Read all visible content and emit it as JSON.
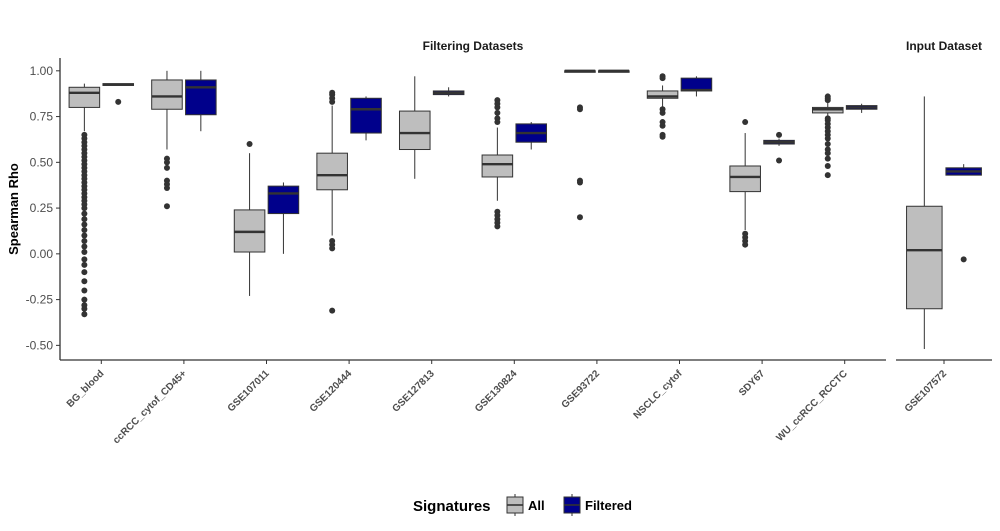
{
  "chart_data": {
    "type": "box",
    "ylabel": "Spearman Rho",
    "ylim": [
      -0.58,
      1.07
    ],
    "yticks": [
      1.0,
      0.75,
      0.5,
      0.25,
      0.0,
      -0.25,
      -0.5
    ],
    "ytick_labels": [
      "1.00",
      "0.75",
      "0.50",
      "0.25",
      "0.00",
      "-0.25",
      "-0.50"
    ],
    "legend": {
      "title": "Signatures",
      "position": "bottom",
      "entries": [
        {
          "label": "All",
          "color": "#bebebe"
        },
        {
          "label": "Filtered",
          "color": "#00008b"
        }
      ]
    },
    "colors": {
      "All": "#bebebe",
      "Filtered": "#00008b",
      "outline": "#333333",
      "median": "#333333"
    },
    "facets": [
      {
        "title": "Filtering Datasets",
        "categories": [
          "BG_blood",
          "ccRCC_cytof_CD45+",
          "GSE107011",
          "GSE120444",
          "GSE127813",
          "GSE130824",
          "GSE93722",
          "NSCLC_cytof",
          "SDY67",
          "WU_ccRCC_RCCTC"
        ],
        "series": [
          {
            "name": "All",
            "boxes": [
              {
                "q1": 0.8,
                "median": 0.88,
                "q3": 0.91,
                "wlo": 0.67,
                "whi": 0.93,
                "outliers": [
                  0.65,
                  0.63,
                  0.61,
                  0.59,
                  0.57,
                  0.55,
                  0.53,
                  0.51,
                  0.49,
                  0.47,
                  0.45,
                  0.43,
                  0.41,
                  0.39,
                  0.37,
                  0.35,
                  0.33,
                  0.31,
                  0.29,
                  0.27,
                  0.25,
                  0.22,
                  0.19,
                  0.16,
                  0.13,
                  0.1,
                  0.07,
                  0.04,
                  0.01,
                  -0.03,
                  -0.06,
                  -0.1,
                  -0.15,
                  -0.2,
                  -0.25,
                  -0.28,
                  -0.3,
                  -0.33
                ]
              },
              {
                "q1": 0.79,
                "median": 0.86,
                "q3": 0.95,
                "wlo": 0.57,
                "whi": 1.0,
                "outliers": [
                  0.52,
                  0.5,
                  0.47,
                  0.4,
                  0.38,
                  0.36,
                  0.26
                ]
              },
              {
                "q1": 0.01,
                "median": 0.12,
                "q3": 0.24,
                "wlo": -0.23,
                "whi": 0.55,
                "outliers": [
                  0.6
                ]
              },
              {
                "q1": 0.35,
                "median": 0.43,
                "q3": 0.55,
                "wlo": 0.1,
                "whi": 0.81,
                "outliers": [
                  0.88,
                  0.87,
                  0.85,
                  0.83,
                  0.07,
                  0.05,
                  0.03,
                  -0.31
                ]
              },
              {
                "q1": 0.57,
                "median": 0.66,
                "q3": 0.78,
                "wlo": 0.41,
                "whi": 0.97,
                "outliers": []
              },
              {
                "q1": 0.42,
                "median": 0.49,
                "q3": 0.54,
                "wlo": 0.29,
                "whi": 0.69,
                "outliers": [
                  0.84,
                  0.82,
                  0.8,
                  0.77,
                  0.74,
                  0.72,
                  0.23,
                  0.21,
                  0.19,
                  0.17,
                  0.15
                ]
              },
              {
                "q1": 1.0,
                "median": 1.0,
                "q3": 1.0,
                "wlo": 1.0,
                "whi": 1.0,
                "outliers": [
                  0.8,
                  0.79,
                  0.4,
                  0.39,
                  0.2
                ]
              },
              {
                "q1": 0.85,
                "median": 0.86,
                "q3": 0.89,
                "wlo": 0.8,
                "whi": 0.92,
                "outliers": [
                  0.97,
                  0.96,
                  0.79,
                  0.77,
                  0.72,
                  0.7,
                  0.65,
                  0.64
                ]
              },
              {
                "q1": 0.34,
                "median": 0.42,
                "q3": 0.48,
                "wlo": 0.13,
                "whi": 0.66,
                "outliers": [
                  0.72,
                  0.11,
                  0.09,
                  0.07,
                  0.05
                ]
              },
              {
                "q1": 0.77,
                "median": 0.79,
                "q3": 0.8,
                "wlo": 0.75,
                "whi": 0.83,
                "outliers": [
                  0.86,
                  0.85,
                  0.84,
                  0.74,
                  0.73,
                  0.71,
                  0.69,
                  0.67,
                  0.65,
                  0.63,
                  0.6,
                  0.57,
                  0.55,
                  0.52,
                  0.48,
                  0.43
                ]
              }
            ]
          },
          {
            "name": "Filtered",
            "boxes": [
              {
                "q1": 0.92,
                "median": 0.925,
                "q3": 0.93,
                "wlo": 0.92,
                "whi": 0.93,
                "outliers": [
                  0.83
                ]
              },
              {
                "q1": 0.76,
                "median": 0.91,
                "q3": 0.95,
                "wlo": 0.67,
                "whi": 1.0,
                "outliers": []
              },
              {
                "q1": 0.22,
                "median": 0.33,
                "q3": 0.37,
                "wlo": 0.0,
                "whi": 0.39,
                "outliers": []
              },
              {
                "q1": 0.66,
                "median": 0.79,
                "q3": 0.85,
                "wlo": 0.62,
                "whi": 0.86,
                "outliers": []
              },
              {
                "q1": 0.87,
                "median": 0.88,
                "q3": 0.89,
                "wlo": 0.86,
                "whi": 0.91,
                "outliers": []
              },
              {
                "q1": 0.61,
                "median": 0.66,
                "q3": 0.71,
                "wlo": 0.57,
                "whi": 0.72,
                "outliers": []
              },
              {
                "q1": 1.0,
                "median": 1.0,
                "q3": 1.0,
                "wlo": 1.0,
                "whi": 1.0,
                "outliers": []
              },
              {
                "q1": 0.89,
                "median": 0.895,
                "q3": 0.96,
                "wlo": 0.86,
                "whi": 0.97,
                "outliers": []
              },
              {
                "q1": 0.6,
                "median": 0.61,
                "q3": 0.62,
                "wlo": 0.59,
                "whi": 0.63,
                "outliers": [
                  0.65,
                  0.51
                ]
              },
              {
                "q1": 0.79,
                "median": 0.8,
                "q3": 0.81,
                "wlo": 0.77,
                "whi": 0.82,
                "outliers": []
              }
            ]
          }
        ]
      },
      {
        "title": "Input Dataset",
        "categories": [
          "GSE107572"
        ],
        "series": [
          {
            "name": "All",
            "boxes": [
              {
                "q1": -0.3,
                "median": 0.02,
                "q3": 0.26,
                "wlo": -0.52,
                "whi": 0.86,
                "outliers": []
              }
            ]
          },
          {
            "name": "Filtered",
            "boxes": [
              {
                "q1": 0.43,
                "median": 0.45,
                "q3": 0.47,
                "wlo": 0.43,
                "whi": 0.49,
                "outliers": [
                  -0.03
                ]
              }
            ]
          }
        ]
      }
    ]
  }
}
